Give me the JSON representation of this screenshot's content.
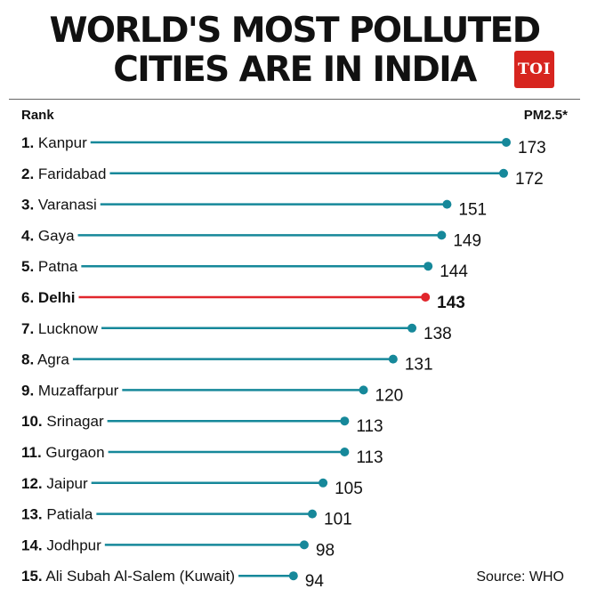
{
  "title_line1": "WORLD'S MOST POLLUTED",
  "title_line2": "CITIES ARE IN INDIA",
  "logo_text": "TOI",
  "header_rank": "Rank",
  "header_value": "PM2.5*",
  "source": "Source: WHO",
  "colors": {
    "bar": "#16889a",
    "highlight": "#e1262c",
    "logo": "#d7251f"
  },
  "chart_data": {
    "type": "bar",
    "orientation": "horizontal",
    "style": "lollipop",
    "highlight_index": 5,
    "items": [
      {
        "rank": "1.",
        "city": "Kanpur",
        "value": 173
      },
      {
        "rank": "2.",
        "city": "Faridabad",
        "value": 172
      },
      {
        "rank": "3.",
        "city": "Varanasi",
        "value": 151
      },
      {
        "rank": "4.",
        "city": "Gaya",
        "value": 149
      },
      {
        "rank": "5.",
        "city": "Patna",
        "value": 144
      },
      {
        "rank": "6.",
        "city": "Delhi",
        "value": 143
      },
      {
        "rank": "7.",
        "city": "Lucknow",
        "value": 138
      },
      {
        "rank": "8.",
        "city": "Agra",
        "value": 131
      },
      {
        "rank": "9.",
        "city": "Muzaffarpur",
        "value": 120
      },
      {
        "rank": "10.",
        "city": "Srinagar",
        "value": 113
      },
      {
        "rank": "11.",
        "city": "Gurgaon",
        "value": 113
      },
      {
        "rank": "12.",
        "city": "Jaipur",
        "value": 105
      },
      {
        "rank": "13.",
        "city": "Patiala",
        "value": 101
      },
      {
        "rank": "14.",
        "city": "Jodhpur",
        "value": 98
      },
      {
        "rank": "15.",
        "city": "Ali Subah Al-Salem (Kuwait)",
        "value": 94
      }
    ]
  }
}
